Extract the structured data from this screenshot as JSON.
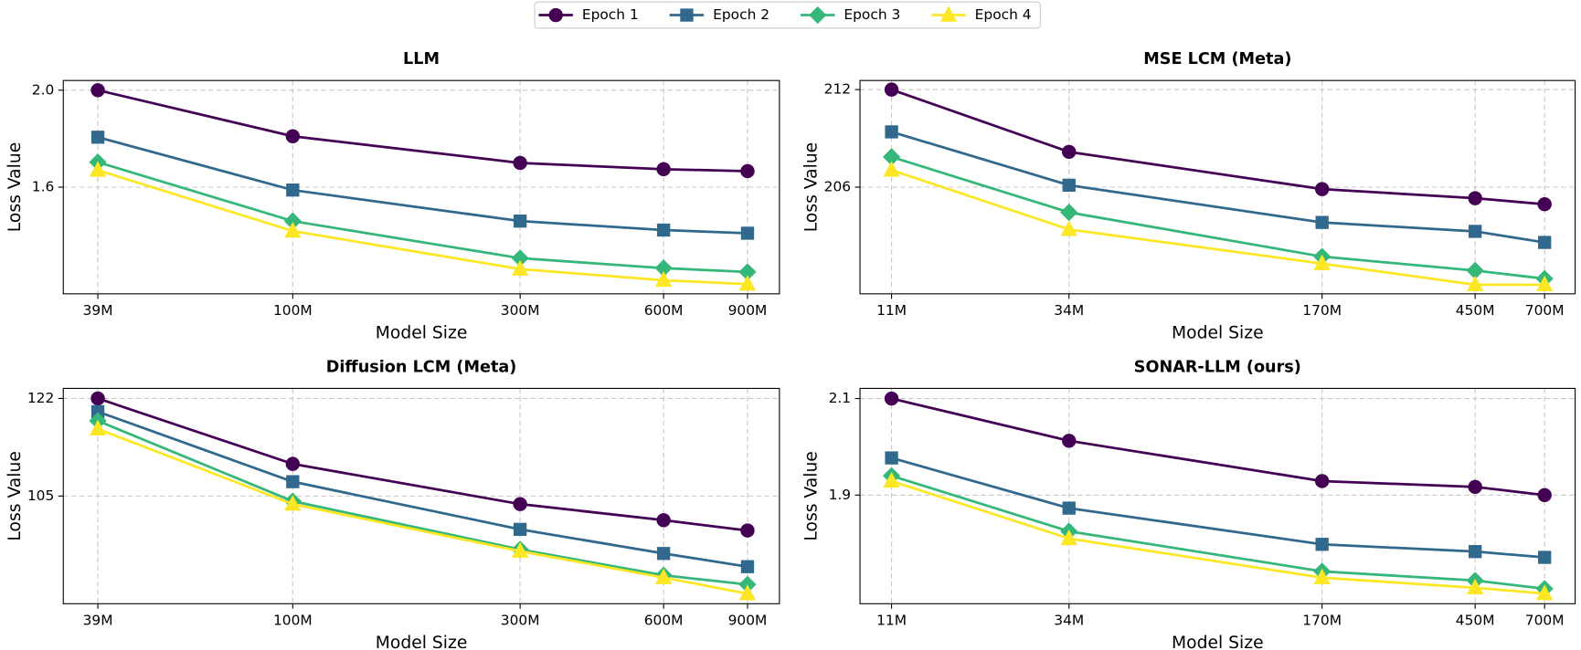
{
  "chart_data": [
    {
      "type": "line",
      "title": "LLM",
      "xlabel": "Model Size",
      "ylabel": "Loss Value",
      "xscale": "log",
      "grid": true,
      "x": [
        39,
        100,
        300,
        600,
        900
      ],
      "xlim": [
        33,
        1050
      ],
      "xticks": [
        {
          "value": 39,
          "label": "39M"
        },
        {
          "value": 100,
          "label": "100M"
        },
        {
          "value": 300,
          "label": "300M"
        },
        {
          "value": 600,
          "label": "600M"
        },
        {
          "value": 900,
          "label": "900M"
        }
      ],
      "ylim": [
        1.16,
        2.04
      ],
      "yticks": [
        1.6,
        {
          "value": 2,
          "label": "2.0"
        }
      ],
      "series": [
        {
          "name": "Epoch 1",
          "color": "#440154",
          "marker": "circle",
          "values": [
            2.0,
            1.81,
            1.7,
            1.674,
            1.666
          ]
        },
        {
          "name": "Epoch 2",
          "color": "#31688e",
          "marker": "square",
          "values": [
            1.806,
            1.588,
            1.46,
            1.423,
            1.41
          ]
        },
        {
          "name": "Epoch 3",
          "color": "#35b779",
          "marker": "diamond",
          "values": [
            1.703,
            1.46,
            1.307,
            1.266,
            1.25
          ]
        },
        {
          "name": "Epoch 4",
          "color": "#fde725",
          "marker": "triangle",
          "values": [
            1.67,
            1.419,
            1.262,
            1.216,
            1.2
          ]
        }
      ]
    },
    {
      "type": "line",
      "title": "MSE LCM (Meta)",
      "xlabel": "Model Size",
      "ylabel": "Loss Value",
      "xscale": "log",
      "grid": true,
      "x": [
        11,
        34,
        170,
        450,
        700
      ],
      "xlim": [
        9,
        850
      ],
      "xticks": [
        {
          "value": 11,
          "label": "11M"
        },
        {
          "value": 34,
          "label": "34M"
        },
        {
          "value": 170,
          "label": "170M"
        },
        {
          "value": 450,
          "label": "450M"
        },
        {
          "value": 700,
          "label": "700M"
        }
      ],
      "ylim": [
        199.44,
        212.56
      ],
      "yticks": [
        206,
        212
      ],
      "series": [
        {
          "name": "Epoch 1",
          "color": "#440154",
          "marker": "circle",
          "values": [
            212.0,
            208.17,
            205.88,
            205.32,
            204.95
          ]
        },
        {
          "name": "Epoch 2",
          "color": "#31688e",
          "marker": "square",
          "values": [
            209.4,
            206.12,
            203.83,
            203.28,
            202.6
          ]
        },
        {
          "name": "Epoch 3",
          "color": "#35b779",
          "marker": "diamond",
          "values": [
            207.86,
            204.45,
            201.73,
            200.87,
            200.37
          ]
        },
        {
          "name": "Epoch 4",
          "color": "#fde725",
          "marker": "triangle",
          "values": [
            207.05,
            203.4,
            201.3,
            200.0,
            200.0
          ]
        }
      ]
    },
    {
      "type": "line",
      "title": "Diffusion LCM (Meta)",
      "xlabel": "Model Size",
      "ylabel": "Loss Value",
      "xscale": "log",
      "grid": true,
      "x": [
        39,
        100,
        300,
        600,
        900
      ],
      "xlim": [
        33,
        1050
      ],
      "xticks": [
        {
          "value": 39,
          "label": "39M"
        },
        {
          "value": 100,
          "label": "100M"
        },
        {
          "value": 300,
          "label": "300M"
        },
        {
          "value": 600,
          "label": "600M"
        },
        {
          "value": 900,
          "label": "900M"
        }
      ],
      "ylim": [
        86.25,
        123.75
      ],
      "yticks": [
        105,
        122
      ],
      "series": [
        {
          "name": "Epoch 1",
          "color": "#440154",
          "marker": "circle",
          "values": [
            122.0,
            110.6,
            103.6,
            100.8,
            99.0
          ]
        },
        {
          "name": "Epoch 2",
          "color": "#31688e",
          "marker": "square",
          "values": [
            119.7,
            107.5,
            99.2,
            95.0,
            92.7
          ]
        },
        {
          "name": "Epoch 3",
          "color": "#35b779",
          "marker": "diamond",
          "values": [
            118.1,
            104.1,
            95.7,
            91.2,
            89.6
          ]
        },
        {
          "name": "Epoch 4",
          "color": "#fde725",
          "marker": "triangle",
          "values": [
            116.7,
            103.6,
            95.4,
            90.8,
            88.0
          ]
        }
      ]
    },
    {
      "type": "line",
      "title": "SONAR-LLM (ours)",
      "xlabel": "Model Size",
      "ylabel": "Loss Value",
      "xscale": "log",
      "grid": true,
      "x": [
        11,
        34,
        170,
        450,
        700
      ],
      "xlim": [
        9,
        850
      ],
      "xticks": [
        {
          "value": 11,
          "label": "11M"
        },
        {
          "value": 34,
          "label": "34M"
        },
        {
          "value": 170,
          "label": "170M"
        },
        {
          "value": 450,
          "label": "450M"
        },
        {
          "value": 700,
          "label": "700M"
        }
      ],
      "ylim": [
        1.675,
        2.121
      ],
      "yticks": [
        1.9,
        2.1
      ],
      "series": [
        {
          "name": "Epoch 1",
          "color": "#440154",
          "marker": "circle",
          "values": [
            2.1,
            2.0125,
            1.929,
            1.917,
            1.9
          ]
        },
        {
          "name": "Epoch 2",
          "color": "#31688e",
          "marker": "square",
          "values": [
            1.977,
            1.873,
            1.798,
            1.783,
            1.771
          ]
        },
        {
          "name": "Epoch 3",
          "color": "#35b779",
          "marker": "diamond",
          "values": [
            1.94,
            1.825,
            1.742,
            1.723,
            1.706
          ]
        },
        {
          "name": "Epoch 4",
          "color": "#fde725",
          "marker": "triangle",
          "values": [
            1.929,
            1.81,
            1.729,
            1.708,
            1.696
          ]
        }
      ]
    }
  ]
}
